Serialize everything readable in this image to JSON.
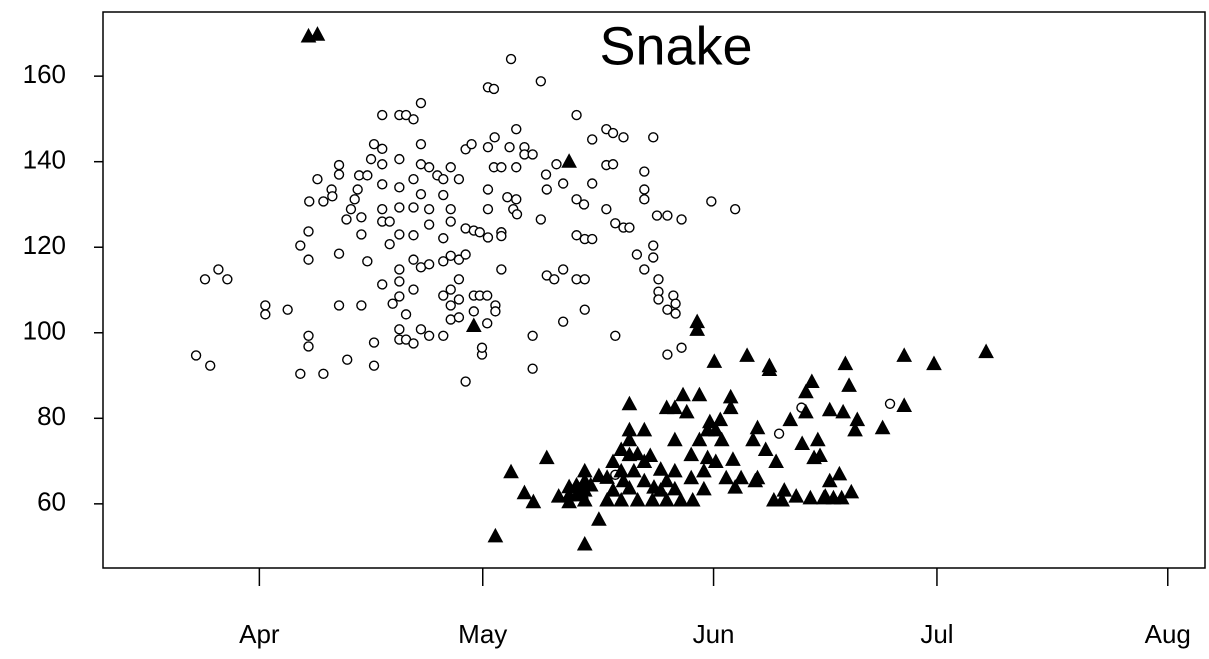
{
  "chart_data": {
    "type": "scatter",
    "title": "Snake",
    "xlim": [
      70,
      218
    ],
    "ylim": [
      45,
      175
    ],
    "xticks": [
      {
        "value": 91,
        "label": "Apr"
      },
      {
        "value": 121,
        "label": "May"
      },
      {
        "value": 152,
        "label": "Jun"
      },
      {
        "value": 182,
        "label": "Jul"
      },
      {
        "value": 213,
        "label": "Aug"
      }
    ],
    "yticks": [
      60,
      80,
      100,
      120,
      140,
      160
    ],
    "grid": false,
    "series": [
      {
        "marker": "circle",
        "filled": false,
        "color": "#000000",
        "x": [
          82.5,
          84.4,
          83.7,
          85.5,
          86.7,
          91.8,
          91.8,
          94.8,
          96.5,
          97.6,
          97.6,
          97.7,
          98.8,
          99.6,
          100.7,
          100.8,
          97.6,
          97.6,
          96.5,
          99.6,
          101.7,
          101.7,
          101.7,
          101.7,
          102.7,
          103.3,
          103.8,
          104.2,
          104.7,
          104.7,
          104.4,
          105.5,
          106,
          106.4,
          105.5,
          104.7,
          106.4,
          106.4,
          102.8,
          107.5,
          107.5,
          107.5,
          107.5,
          107.5,
          107.5,
          108.5,
          108.5,
          107.5,
          108.9,
          109.8,
          109.8,
          109.8,
          109.8,
          109.8,
          109.8,
          109.8,
          109.8,
          110.7,
          111.7,
          109.8,
          109.8,
          110.7,
          111.7,
          110.7,
          111.7,
          111.7,
          111.7,
          111.7,
          111.7,
          112.7,
          112.7,
          112.7,
          112.7,
          112.7,
          112.7,
          113.8,
          113.8,
          113.8,
          113.8,
          113.8,
          114.9,
          115.7,
          115.7,
          115.7,
          115.7,
          115.7,
          115.7,
          116.7,
          116.7,
          116.7,
          116.7,
          116.7,
          116.7,
          116.7,
          117.8,
          117.8,
          117.8,
          117.8,
          117.8,
          118.7,
          118.7,
          118.7,
          118.7,
          119.5,
          119.8,
          119.8,
          119.8,
          120.6,
          120.6,
          120.9,
          120.9,
          121.6,
          121.6,
          121.7,
          121.7,
          121.7,
          121.7,
          121.7,
          122.5,
          122.5,
          122.6,
          123.5,
          123.5,
          123.5,
          123.5,
          122.7,
          122.7,
          124.3,
          124.6,
          124.8,
          125.1,
          125.5,
          125.5,
          125.5,
          125.6,
          126.6,
          126.6,
          127.7,
          127.7,
          127.7,
          128.8,
          128.8,
          129.5,
          129.6,
          129.6,
          130.9,
          130.6,
          131.8,
          131.8,
          131.8,
          133.6,
          133.6,
          134.6,
          133.6,
          134.7,
          135.7,
          133.6,
          134.7,
          134.7,
          135.7,
          135.7,
          137.6,
          137.6,
          137.6,
          138.5,
          138.5,
          138.8,
          138.8,
          138.8,
          139.9,
          139.9,
          140.7,
          141.7,
          142.7,
          142.7,
          142.7,
          142.7,
          143.9,
          143.9,
          143.9,
          144.4,
          144.6,
          144.6,
          144.6,
          145.8,
          145.8,
          145.8,
          146.6,
          146.9,
          146.9,
          147.7,
          147.7,
          151.7,
          154.9,
          160.8,
          163.8,
          175.7
        ],
        "values": [
          94.7,
          92.3,
          112.5,
          114.8,
          112.5,
          106.4,
          104.3,
          105.4,
          120.4,
          117.1,
          123.7,
          130.7,
          135.9,
          130.7,
          133.5,
          131.9,
          99.3,
          96.8,
          90.4,
          90.4,
          139.2,
          137,
          118.5,
          106.4,
          126.5,
          128.9,
          131.2,
          133.5,
          127,
          123,
          136.8,
          136.8,
          140.6,
          144.1,
          116.7,
          106.4,
          97.7,
          92.3,
          93.7,
          150.9,
          143,
          139.4,
          134.7,
          128.9,
          126,
          126,
          120.7,
          111.3,
          106.8,
          108.5,
          112,
          114.8,
          123,
          129.3,
          134,
          140.6,
          150.9,
          150.9,
          149.9,
          100.8,
          98.4,
          98.4,
          97.5,
          104.3,
          110.1,
          117.1,
          122.8,
          129.3,
          135.9,
          153.7,
          144.1,
          139.4,
          132.4,
          115.3,
          100.8,
          138.7,
          128.9,
          125.3,
          116,
          99.3,
          136.8,
          135.9,
          132.2,
          122.1,
          116.7,
          108.7,
          99.3,
          138.7,
          128.9,
          126,
          118,
          110.1,
          106.4,
          103.1,
          135.9,
          117.1,
          112.5,
          107.8,
          103.6,
          124.4,
          118.3,
          88.6,
          142.9,
          144.1,
          123.9,
          108.7,
          105,
          123.5,
          108.7,
          94.9,
          96.5,
          102.2,
          108.7,
          143.4,
          133.5,
          128.9,
          122.3,
          157.4,
          157,
          138.7,
          145.7,
          138.7,
          123.5,
          114.8,
          122.6,
          106.4,
          105,
          131.7,
          143.4,
          164,
          128.9,
          138.7,
          147.6,
          131.2,
          127.7,
          143.4,
          141.7,
          99.3,
          91.6,
          141.7,
          158.8,
          126.5,
          137,
          133.5,
          113.4,
          139.4,
          112.5,
          114.8,
          134.9,
          102.6,
          150.9,
          131.2,
          130,
          122.8,
          121.9,
          121.9,
          112.5,
          112.5,
          105.4,
          134.9,
          145.2,
          147.6,
          139.2,
          128.9,
          146.7,
          139.4,
          125.6,
          99.3,
          66.8,
          145.7,
          124.6,
          124.6,
          118.3,
          137.7,
          133.5,
          131.2,
          114.8,
          145.7,
          120.4,
          117.6,
          127.4,
          112.5,
          109.6,
          107.8,
          127.4,
          105.4,
          94.9,
          108.7,
          106.8,
          104.5,
          96.5,
          126.5,
          130.7,
          128.9,
          76.4,
          82.5,
          83.4
        ]
      },
      {
        "marker": "triangle",
        "filled": true,
        "color": "#000000",
        "x": [
          97.6,
          98.8,
          119.8,
          132.6,
          122.7,
          124.8,
          126.6,
          127.8,
          129.6,
          132.6,
          132.6,
          132.6,
          133.6,
          133.6,
          134.7,
          134.7,
          134.7,
          134.7,
          134.7,
          135.5,
          136.6,
          136.6,
          137.7,
          137.7,
          138.5,
          138.5,
          139.6,
          139.6,
          139.6,
          139.9,
          140.7,
          140.7,
          140.7,
          140.7,
          140.7,
          141.3,
          141.8,
          141.8,
          142.7,
          142.7,
          142.7,
          143.5,
          143.8,
          144,
          144.9,
          144.9,
          145.7,
          145.7,
          145.7,
          146.8,
          146.8,
          146.8,
          146.8,
          147.6,
          147.9,
          148.4,
          149,
          149,
          149.2,
          149.8,
          149.8,
          150.1,
          150.1,
          150.7,
          150.7,
          151.2,
          151.2,
          151.5,
          152.1,
          152.3,
          152.3,
          152.9,
          153.1,
          153.7,
          154.3,
          154.3,
          154.6,
          154.9,
          155.7,
          156.5,
          157.3,
          157.6,
          157.9,
          157.9,
          159,
          159.5,
          159.5,
          160.1,
          160.4,
          161.2,
          161.5,
          162.3,
          163.1,
          163.9,
          164.4,
          164.4,
          165,
          165.2,
          165.5,
          166,
          166.3,
          166.8,
          167,
          167.6,
          167.6,
          168.1,
          168.9,
          169.2,
          169.7,
          169.4,
          170.2,
          170.5,
          171,
          171.3,
          174.7,
          177.6,
          177.6,
          181.6,
          188.6,
          134.2,
          131.2
        ],
        "values": [
          169.4,
          169.8,
          101.7,
          140.1,
          52.5,
          67.5,
          62.6,
          60.5,
          70.8,
          64,
          62.1,
          60.5,
          64.4,
          62.1,
          67.7,
          65.4,
          63.2,
          60.9,
          50.6,
          64.4,
          56.4,
          66.6,
          66.2,
          60.9,
          69.9,
          63.2,
          72.7,
          67.7,
          60.9,
          65.4,
          83.4,
          77.3,
          75,
          71.5,
          63.7,
          67.7,
          71.7,
          60.9,
          77.3,
          69.9,
          65.4,
          71.3,
          60.9,
          63.9,
          68.1,
          63.2,
          82.5,
          65.4,
          60.9,
          82.5,
          75,
          67.7,
          63.5,
          60.9,
          85.5,
          81.5,
          71.5,
          66.1,
          60.9,
          102.6,
          100.8,
          85.5,
          75,
          67.7,
          63.5,
          77.3,
          70.8,
          79.2,
          93.3,
          77.3,
          69.9,
          79.7,
          75,
          66.1,
          85,
          82.5,
          70.4,
          63.9,
          66.1,
          94.7,
          75,
          65.4,
          66.1,
          77.8,
          72.7,
          92.3,
          91.4,
          60.9,
          69.9,
          60.9,
          63.2,
          79.7,
          61.8,
          74.1,
          81.5,
          86.2,
          61.4,
          88.6,
          70.8,
          75,
          71.3,
          61.4,
          61.8,
          82,
          65.4,
          61.4,
          67,
          61.4,
          92.8,
          81.5,
          87.7,
          62.8,
          77.3,
          79.7,
          77.8,
          94.7,
          83,
          92.8,
          95.6,
          62.8,
          61.8
        ]
      }
    ]
  }
}
